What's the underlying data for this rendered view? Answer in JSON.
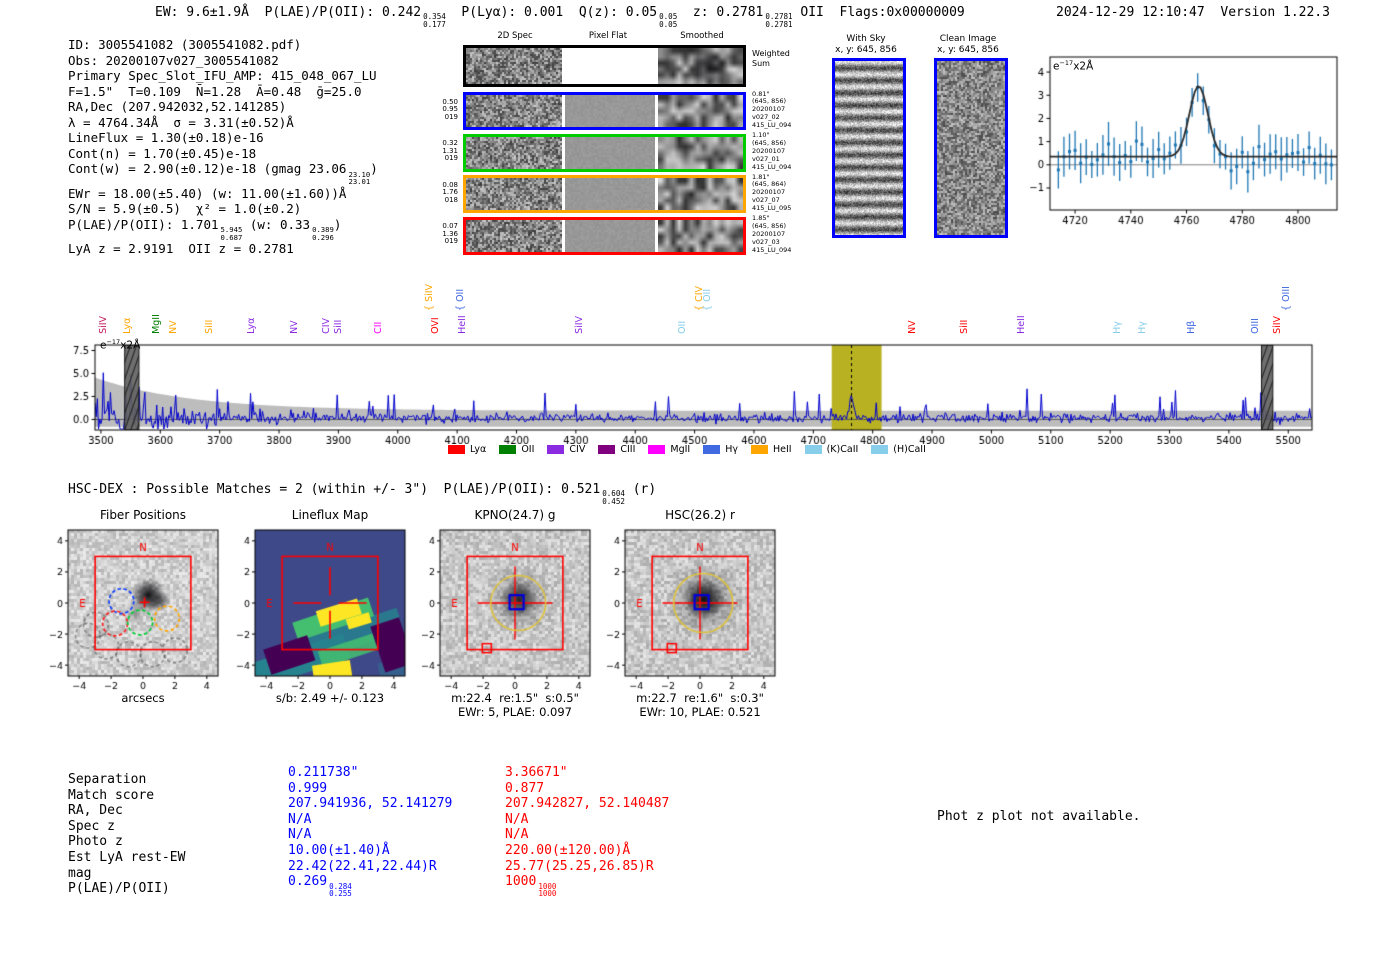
{
  "header": {
    "line_segments": [
      {
        "t": "EW: 9.6±1.9Å  P(LAE)/P(OII): 0.242"
      },
      {
        "f": [
          "0.354",
          "0.177"
        ]
      },
      {
        "t": "  P(Lyα): 0.001  Q(z): 0.05"
      },
      {
        "f": [
          "0.05",
          "0.05"
        ]
      },
      {
        "t": "  z: 0.2781"
      },
      {
        "f": [
          "0.2781",
          "0.2781"
        ]
      },
      {
        "t": " OII  Flags:0x00000009"
      }
    ],
    "timestamp": "2024-12-29 12:10:47",
    "version": "Version 1.22.3"
  },
  "info_lines": [
    [
      {
        "t": "ID: 3005541082 (3005541082.pdf)"
      }
    ],
    [
      {
        "t": "Obs: 20200107v027_3005541082"
      }
    ],
    [
      {
        "t": "Primary Spec_Slot_IFU_AMP: 415_048_067_LU"
      }
    ],
    [
      {
        "t": "F=1.5\"  T=0.109  N̄=1.28  Ā=0.48  ḡ=25.0"
      }
    ],
    [
      {
        "t": "RA,Dec (207.942032,52.141285)"
      }
    ],
    [
      {
        "t": "λ = 4764.34Å  σ = 3.31(±0.52)Å"
      }
    ],
    [
      {
        "t": "LineFlux = 1.30(±0.18)e-16"
      }
    ],
    [
      {
        "t": "Cont(n) = 1.70(±0.45)e-18"
      }
    ],
    [
      {
        "t": "Cont(w) = 2.90(±0.12)e-18 (gmag 23.06"
      },
      {
        "f": [
          "23.10",
          "23.01"
        ]
      },
      {
        "t": ")"
      }
    ],
    [
      {
        "t": "EWr = 18.00(±5.40) (w: 11.00(±1.60))Å"
      }
    ],
    [
      {
        "t": "S/N = 5.9(±0.5)  χ² = 1.0(±0.2)"
      }
    ],
    [
      {
        "t": "P(LAE)/P(OII): 1.701"
      },
      {
        "f": [
          "5.945",
          "0.687"
        ]
      },
      {
        "t": " (w: 0.33"
      },
      {
        "f": [
          "0.389",
          "0.296"
        ]
      },
      {
        "t": ")"
      }
    ],
    [
      {
        "t": "LyA z = 2.9191  OII z = 0.2781"
      }
    ]
  ],
  "cutouts_2d": {
    "col_headers": [
      "2D Spec",
      "Pixel Flat",
      "Smoothed"
    ],
    "sum_label": [
      "Weighted",
      "Sum"
    ],
    "rows": [
      {
        "border": "#0000ff",
        "left": [
          "0.50",
          "0.95",
          "019"
        ],
        "right": [
          "0.81\"",
          "(645, 856)",
          "20200107",
          "v027_02",
          "415_LU_094"
        ]
      },
      {
        "border": "#00cc00",
        "left": [
          "0.32",
          "1.31",
          "019"
        ],
        "right": [
          "1.10\"",
          "(645, 856)",
          "20200107",
          "v027_01",
          "415_LU_094"
        ]
      },
      {
        "border": "#ffa500",
        "left": [
          "0.08",
          "1.76",
          "018"
        ],
        "right": [
          "1.81\"",
          "(645, 864)",
          "20200107",
          "v027_07",
          "415_LU_095"
        ]
      },
      {
        "border": "#ff0000",
        "left": [
          "0.07",
          "1.36",
          "019"
        ],
        "right": [
          "1.85\"",
          "(645, 856)",
          "20200107",
          "v027_03",
          "415_LU_094"
        ]
      }
    ]
  },
  "sky_panels": [
    {
      "title": "With Sky",
      "subtitle": "x, y: 645, 856",
      "pattern": "stripes",
      "border": "#0000ff"
    },
    {
      "title": "Clean Image",
      "subtitle": "x, y: 645, 856",
      "pattern": "noise",
      "border": "#0000ff"
    }
  ],
  "chart_data": [
    {
      "type": "scatter",
      "name": "line-fit-plot",
      "inset": {
        "pre": "e",
        "sup": "−17",
        "suf": "x2Å"
      },
      "x_ticks": [
        4720,
        4740,
        4760,
        4780,
        4800
      ],
      "y_ticks": [
        -1,
        0,
        1,
        2,
        3,
        4
      ],
      "xlim": [
        4711,
        4814
      ],
      "ylim": [
        -1.95,
        4.65
      ],
      "fit": {
        "center": 4764.34,
        "sigma": 3.31,
        "amplitude": 3.05,
        "continuum": 0.35
      },
      "marker_color": "#1f77b4",
      "fit_color": "#2a2a2a",
      "description": "Blue error-bar flux points with black Gaussian fit centered at 4764.34 Å, peak ~3.4e-17"
    },
    {
      "type": "line",
      "name": "full-spectrum-plot",
      "inset": {
        "pre": "e",
        "sup": "−17",
        "suf": "x2Å"
      },
      "x_ticks": [
        3500,
        3600,
        3700,
        3800,
        3900,
        4000,
        4100,
        4200,
        4300,
        4400,
        4500,
        4600,
        4700,
        4800,
        4900,
        5000,
        5100,
        5200,
        5300,
        5400,
        5500
      ],
      "y_tick_labels": [
        "0.0",
        "2.5",
        "5.0",
        "7.5"
      ],
      "y_ticks": [
        0,
        2.5,
        5,
        7.5
      ],
      "xlim": [
        3490,
        5540
      ],
      "ylim": [
        -1.15,
        8.1
      ],
      "line_color": "#0000cc",
      "error_color": "#bdbdbd",
      "highlight_band": {
        "x0": 4731,
        "x1": 4815,
        "color": "#b8b222"
      },
      "marker_line_x": 4764.34,
      "hatch_bands": [
        [
          3540,
          3564
        ],
        [
          5455,
          5474
        ]
      ],
      "emission_peak": {
        "x": 4764.34,
        "amplitude": 2.5,
        "sigma": 3.31
      },
      "line_labels": [
        {
          "wavelength": 3503,
          "label": "SiIV",
          "color": "#c2185b",
          "lift": false
        },
        {
          "wavelength": 3544,
          "label": "Lyα",
          "color": "#ffa500",
          "lift": false
        },
        {
          "wavelength": 3593,
          "label": "MgII",
          "color": "#008000",
          "lift": false
        },
        {
          "wavelength": 3621,
          "label": "NV",
          "color": "#ffa500",
          "lift": false
        },
        {
          "wavelength": 3682,
          "label": "SiII",
          "color": "#ffa500",
          "lift": false
        },
        {
          "wavelength": 3753,
          "label": "Lyα",
          "color": "#8a2be2",
          "lift": false
        },
        {
          "wavelength": 3825,
          "label": "NV",
          "color": "#8a2be2",
          "lift": false
        },
        {
          "wavelength": 3879,
          "label": "CIV",
          "color": "#8a2be2",
          "lift": false
        },
        {
          "wavelength": 3899,
          "label": "SiII",
          "color": "#8a2be2",
          "lift": false
        },
        {
          "wavelength": 3966,
          "label": "CII",
          "color": "#ff00ff",
          "lift": false
        },
        {
          "wavelength": 4052,
          "label": "SiIV",
          "color": "#ffa500",
          "lift": true
        },
        {
          "wavelength": 4062,
          "label": "OVI",
          "color": "#ff0000",
          "lift": false
        },
        {
          "wavelength": 4104,
          "label": "OII",
          "color": "#4169e1",
          "lift": true
        },
        {
          "wavelength": 4108,
          "label": "HeII",
          "color": "#8a2be2",
          "lift": false
        },
        {
          "wavelength": 4305,
          "label": "SiIV",
          "color": "#8a2be2",
          "lift": false
        },
        {
          "wavelength": 4478,
          "label": "OII",
          "color": "#87ceeb",
          "lift": false
        },
        {
          "wavelength": 4507,
          "label": "CIV",
          "color": "#ffa500",
          "lift": true
        },
        {
          "wavelength": 4521,
          "label": "OII",
          "color": "#87ceeb",
          "lift": true
        },
        {
          "wavelength": 4867,
          "label": "NV",
          "color": "#ff0000",
          "lift": false
        },
        {
          "wavelength": 4954,
          "label": "SiII",
          "color": "#ff0000",
          "lift": false
        },
        {
          "wavelength": 5050,
          "label": "HeII",
          "color": "#8a2be2",
          "lift": false
        },
        {
          "wavelength": 5212,
          "label": "Hγ",
          "color": "#87ceeb",
          "lift": false
        },
        {
          "wavelength": 5254,
          "label": "Hγ",
          "color": "#87ceeb",
          "lift": false
        },
        {
          "wavelength": 5336,
          "label": "Hβ",
          "color": "#4169e1",
          "lift": false
        },
        {
          "wavelength": 5444,
          "label": "OIII",
          "color": "#4169e1",
          "lift": false
        },
        {
          "wavelength": 5481,
          "label": "SiIV",
          "color": "#ff0000",
          "lift": false
        },
        {
          "wavelength": 5496,
          "label": "OIII",
          "color": "#4169e1",
          "lift": true
        }
      ],
      "legend": [
        {
          "label": "Lyα",
          "color": "#ff0000"
        },
        {
          "label": "OII",
          "color": "#008000"
        },
        {
          "label": "CIV",
          "color": "#8a2be2"
        },
        {
          "label": "CIII",
          "color": "#800080"
        },
        {
          "label": "MgII",
          "color": "#ff00ff"
        },
        {
          "label": "Hγ",
          "color": "#4169e1"
        },
        {
          "label": "HeII",
          "color": "#ffa500"
        },
        {
          "label": "(K)CaII",
          "color": "#87ceeb"
        },
        {
          "label": "(H)CaII",
          "color": "#87ceeb"
        }
      ],
      "legend_position": "below"
    }
  ],
  "hsc_dex_line": [
    {
      "t": "HSC-DEX : Possible Matches = 2 (within +/- 3\")  P(LAE)/P(OII): 0.521"
    },
    {
      "f": [
        "0.604",
        "0.452"
      ]
    },
    {
      "t": " (r)"
    }
  ],
  "panels": [
    {
      "title": "Fiber Positions",
      "xlabel": "arcsecs",
      "caption": "",
      "kind": "fiber"
    },
    {
      "title": "Lineflux Map",
      "xlabel": "s/b: 2.49 +/- 0.123",
      "caption": "",
      "kind": "lineflux"
    },
    {
      "title": "KPNO(24.7) g",
      "xlabel": "m:22.4  re:1.5\"  s:0.5\"",
      "caption": "EWr: 5, PLAE: 0.097",
      "kind": "image"
    },
    {
      "title": "HSC(26.2) r",
      "xlabel": "m:22.7  re:1.6\"  s:0.3\"",
      "caption": "EWr: 10, PLAE: 0.521",
      "kind": "image"
    }
  ],
  "panel_axis": {
    "ticks": [
      -4,
      -2,
      0,
      2,
      4
    ],
    "compass": {
      "north": "N",
      "east": "E"
    },
    "accent": "#ff0000"
  },
  "match_table": {
    "row_labels": [
      "Separation",
      "Match score",
      "RA, Dec",
      "Spec z",
      "Photo z",
      "Est LyA rest-EW",
      "mag",
      "P(LAE)/P(OII)"
    ],
    "columns": [
      {
        "color": "#0000ff",
        "values": [
          [
            {
              "t": "0.211738\""
            }
          ],
          [
            {
              "t": "0.999"
            }
          ],
          [
            {
              "t": "207.941936, 52.141279"
            }
          ],
          [
            {
              "t": "N/A"
            }
          ],
          [
            {
              "t": "N/A"
            }
          ],
          [
            {
              "t": "10.00(±1.40)Å"
            }
          ],
          [
            {
              "t": "22.42(22.41,22.44)R"
            }
          ],
          [
            {
              "t": "0.269"
            },
            {
              "f": [
                "0.284",
                "0.255"
              ]
            }
          ]
        ]
      },
      {
        "color": "#ff0000",
        "values": [
          [
            {
              "t": "3.36671\""
            }
          ],
          [
            {
              "t": "0.877"
            }
          ],
          [
            {
              "t": "207.942827, 52.140487"
            }
          ],
          [
            {
              "t": "N/A"
            }
          ],
          [
            {
              "t": "N/A"
            }
          ],
          [
            {
              "t": "220.00(±120.00)Å"
            }
          ],
          [
            {
              "t": "25.77(25.25,26.85)R"
            }
          ],
          [
            {
              "t": "1000"
            },
            {
              "f": [
                "1000",
                "1000"
              ]
            }
          ]
        ]
      }
    ]
  },
  "photz_note": "Phot z plot not available.",
  "colors": {
    "value_blue": "#0000ff",
    "value_red": "#ff0000",
    "accent_red": "#ff0000",
    "spectrum_blue": "#0000cc",
    "band_yellow": "#b8b222",
    "cutout_blue": "#0000ff",
    "cutout_green": "#00cc00",
    "cutout_orange": "#ffa500",
    "cutout_red": "#ff0000"
  }
}
